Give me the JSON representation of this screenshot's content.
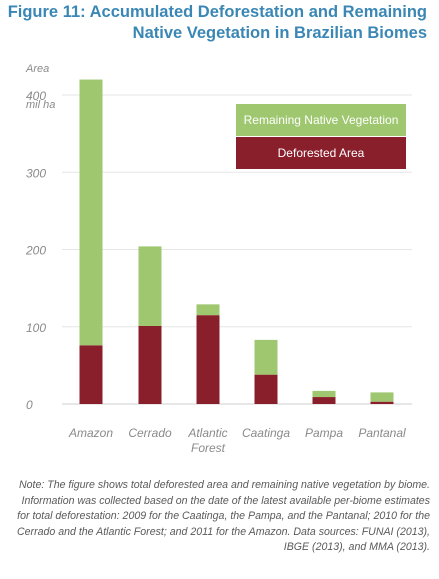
{
  "title": {
    "line1": "Figure 11: Accumulated Deforestation and Remaining",
    "line2": "Native Vegetation in Brazilian Biomes"
  },
  "colors": {
    "remaining": "#9ec76f",
    "deforested": "#8a1f2c",
    "title": "#3a87b5",
    "axis_text": "#8a8a8a",
    "grid": "#e6e6e6"
  },
  "chart_data": {
    "type": "bar",
    "stacked": true,
    "ylabel": "Area",
    "yunit": "mil ha",
    "ylim": [
      0,
      430
    ],
    "yticks": [
      0,
      100,
      200,
      300,
      400
    ],
    "grid": true,
    "legend_position": "top-right",
    "categories": [
      "Amazon",
      "Cerrado",
      "Atlantic\nForest",
      "Caatinga",
      "Pampa",
      "Pantanal"
    ],
    "series": [
      {
        "name": "Deforested Area",
        "values": [
          76,
          101,
          115,
          38,
          9,
          3
        ]
      },
      {
        "name": "Remaining Native Vegetation",
        "values": [
          344,
          103,
          14,
          45,
          8,
          12
        ]
      }
    ]
  },
  "note": "Note: The figure shows total deforested area and remaining native vegetation by biome. Information was collected based on the date of the latest available per-biome estimates for total deforestation: 2009 for the Caatinga, the Pampa, and the Pantanal; 2010 for the Cerrado and the Atlantic Forest; and 2011 for the Amazon. Data sources: FUNAI (2013), IBGE (2013), and MMA (2013)."
}
